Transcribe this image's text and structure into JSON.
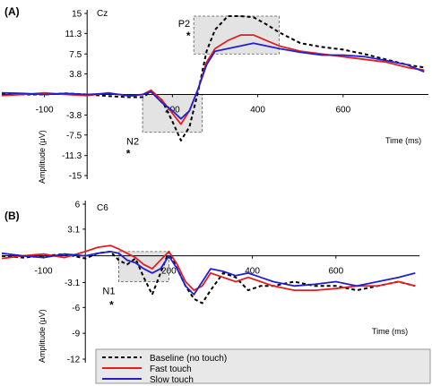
{
  "chart_data": [
    {
      "type": "line",
      "panel_label": "(A)",
      "electrode": "Cz",
      "xlabel": "Time (ms)",
      "ylabel": "Amplitude (μV)",
      "xlim": [
        -200,
        800
      ],
      "ylim": [
        -15,
        15
      ],
      "x_ticks": [
        "-100",
        "200",
        "400",
        "600"
      ],
      "y_ticks": [
        "15",
        "11.3",
        "7.5",
        "3.8",
        "-3.8",
        "-7.5",
        "-11.3",
        "-15"
      ],
      "windows": [
        {
          "label": "N2",
          "marker": "*",
          "x": [
            130,
            270
          ],
          "y": [
            -7,
            0
          ]
        },
        {
          "label": "P2",
          "marker": "*",
          "x": [
            250,
            450
          ],
          "y": [
            7.5,
            14.5
          ]
        }
      ],
      "x": [
        -200,
        -150,
        -100,
        -50,
        0,
        50,
        100,
        130,
        150,
        175,
        200,
        220,
        240,
        260,
        280,
        300,
        330,
        360,
        390,
        420,
        450,
        500,
        550,
        600,
        650,
        700,
        750,
        790
      ],
      "series": [
        {
          "name": "Baseline (no touch)",
          "color": "#000000",
          "style": "dashed",
          "values": [
            0,
            0,
            0,
            0.2,
            0,
            -0.3,
            -0.5,
            -0.5,
            0.5,
            -1,
            -5,
            -8.5,
            -6,
            0.5,
            8,
            12,
            14.5,
            14.5,
            14.3,
            13,
            11.5,
            9.5,
            8.8,
            8.3,
            7.5,
            6.5,
            5.5,
            5
          ]
        },
        {
          "name": "Fast touch",
          "color": "#e02020",
          "style": "solid",
          "values": [
            -0.2,
            0,
            0.3,
            0,
            -0.2,
            0.3,
            -0.3,
            0,
            0.8,
            -1,
            -3.5,
            -5.5,
            -3,
            1,
            6,
            8.5,
            10,
            11,
            11,
            10,
            9,
            8,
            7.5,
            7,
            6.5,
            6,
            5,
            4.5
          ]
        },
        {
          "name": "Slow touch",
          "color": "#2020d0",
          "style": "solid",
          "values": [
            0.3,
            0.2,
            0,
            0.2,
            0,
            0.2,
            -0.2,
            0,
            0.5,
            -1.5,
            -3,
            -4.5,
            -3,
            1,
            5.5,
            8,
            8.5,
            9,
            9.5,
            9,
            8.5,
            7.8,
            7.3,
            7.3,
            7,
            6.3,
            5.5,
            4.2
          ]
        }
      ]
    },
    {
      "type": "line",
      "panel_label": "(B)",
      "electrode": "C6",
      "xlabel": "Time (ms)",
      "ylabel": "Amplitude (μV)",
      "xlim": [
        -200,
        800
      ],
      "ylim": [
        -12,
        6
      ],
      "x_ticks": [
        "-100",
        "200",
        "400",
        "600"
      ],
      "y_ticks": [
        "6",
        "3.1",
        "-3.1",
        "-6",
        "-9",
        "-12"
      ],
      "windows": [
        {
          "label": "N1",
          "marker": "*",
          "x": [
            80,
            200
          ],
          "y": [
            -3,
            0.5
          ]
        }
      ],
      "x": [
        -200,
        -150,
        -100,
        -50,
        0,
        30,
        60,
        80,
        100,
        120,
        140,
        160,
        180,
        200,
        220,
        240,
        260,
        280,
        300,
        330,
        360,
        390,
        420,
        450,
        500,
        550,
        600,
        650,
        700,
        750,
        790
      ],
      "series": [
        {
          "name": "Baseline (no touch)",
          "color": "#000000",
          "style": "dashed",
          "values": [
            0,
            -0.2,
            0,
            0.2,
            -0.3,
            0.3,
            0.5,
            -0.5,
            -1,
            -0.3,
            -2.5,
            -4.5,
            -2,
            0.5,
            -1.5,
            -3.5,
            -5,
            -5.5,
            -4,
            -2,
            -2.5,
            -4,
            -3.5,
            -3.5,
            -3,
            -3.5,
            -3.5,
            -4,
            -3.5,
            -3,
            -3.5
          ]
        },
        {
          "name": "Fast touch",
          "color": "#e02020",
          "style": "solid",
          "values": [
            -0.3,
            0,
            0.2,
            -0.2,
            0.5,
            1,
            1.2,
            0.8,
            0.3,
            -0.2,
            -1,
            -1.5,
            -0.5,
            0.5,
            -1,
            -3,
            -4,
            -3.5,
            -2,
            -2.5,
            -3,
            -2.5,
            -3,
            -3.5,
            -4,
            -4,
            -3.8,
            -3.5,
            -3.5,
            -3,
            -3.5
          ]
        },
        {
          "name": "Slow touch",
          "color": "#2020d0",
          "style": "solid",
          "values": [
            0.3,
            0,
            -0.2,
            0.2,
            0,
            0.3,
            0.5,
            0.3,
            -0.5,
            -0.8,
            -1.5,
            -2,
            -1.5,
            0,
            -1.5,
            -3.5,
            -4.5,
            -3,
            -1.5,
            -1.8,
            -2.3,
            -2,
            -2.5,
            -3,
            -3.5,
            -3.3,
            -3,
            -3.5,
            -3,
            -2.5,
            -2
          ]
        }
      ]
    }
  ]
}
